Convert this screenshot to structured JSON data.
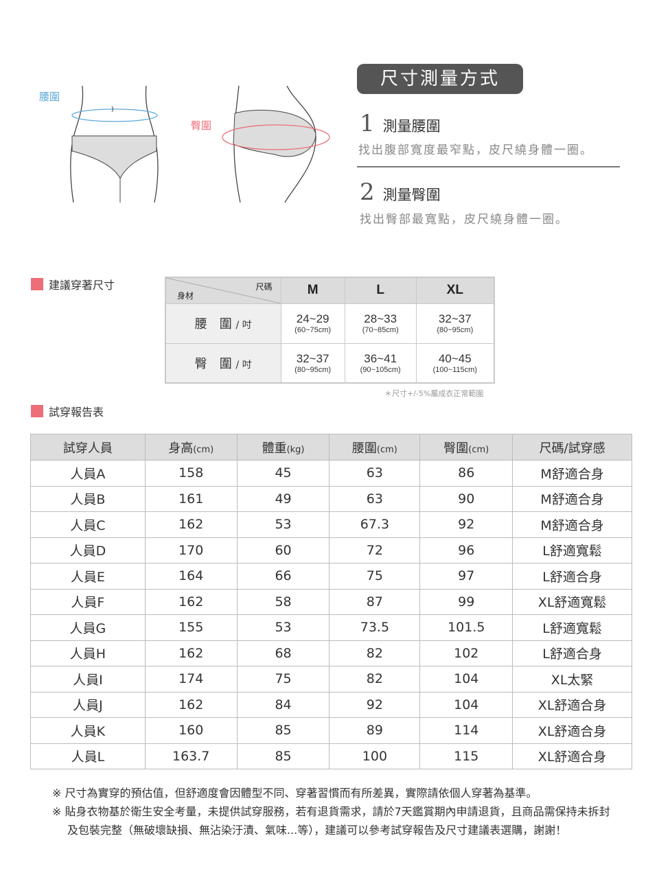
{
  "illustrations": {
    "waist_label": "腰圍",
    "hip_label": "臀圍",
    "waist_color": "#5ba7d8",
    "hip_color": "#ec6e78"
  },
  "measure": {
    "title": "尺寸測量方式",
    "steps": [
      {
        "num": "1",
        "title": "測量腰圍",
        "desc": "找出腹部寬度最窄點，皮尺繞身體一圈。"
      },
      {
        "num": "2",
        "title": "測量臀圍",
        "desc": "找出臀部最寬點，皮尺繞身體一圈。"
      }
    ]
  },
  "size_section": {
    "title": "建議穿著尺寸",
    "corner_top": "尺碼",
    "corner_bottom": "身材",
    "sizes": [
      "M",
      "L",
      "XL"
    ],
    "rows": [
      {
        "label": "腰　圍",
        "unit": "/ 吋",
        "values": [
          {
            "in": "24~29",
            "cm": "(60~75cm)"
          },
          {
            "in": "28~33",
            "cm": "(70~85cm)"
          },
          {
            "in": "32~37",
            "cm": "(80~95cm)"
          }
        ]
      },
      {
        "label": "臀　圍",
        "unit": "/ 吋",
        "values": [
          {
            "in": "32~37",
            "cm": "(80~95cm)"
          },
          {
            "in": "36~41",
            "cm": "(90~105cm)"
          },
          {
            "in": "40~45",
            "cm": "(100~115cm)"
          }
        ]
      }
    ],
    "note": "＊尺寸+/-5%屬成衣正常範圍"
  },
  "trial_section": {
    "title": "試穿報告表",
    "headers": [
      {
        "t": "試穿人員",
        "u": ""
      },
      {
        "t": "身高",
        "u": "(cm)"
      },
      {
        "t": "體重",
        "u": "(kg)"
      },
      {
        "t": "腰圍",
        "u": "(cm)"
      },
      {
        "t": "臀圍",
        "u": "(cm)"
      },
      {
        "t": "尺碼/試穿感",
        "u": ""
      }
    ],
    "rows": [
      [
        "人員A",
        "158",
        "45",
        "63",
        "86",
        "M舒適合身"
      ],
      [
        "人員B",
        "161",
        "49",
        "63",
        "90",
        "M舒適合身"
      ],
      [
        "人員C",
        "162",
        "53",
        "67.3",
        "92",
        "M舒適合身"
      ],
      [
        "人員D",
        "170",
        "60",
        "72",
        "96",
        "L舒適寬鬆"
      ],
      [
        "人員E",
        "164",
        "66",
        "75",
        "97",
        "L舒適合身"
      ],
      [
        "人員F",
        "162",
        "58",
        "87",
        "99",
        "XL舒適寬鬆"
      ],
      [
        "人員G",
        "155",
        "53",
        "73.5",
        "101.5",
        "L舒適寬鬆"
      ],
      [
        "人員H",
        "162",
        "68",
        "82",
        "102",
        "L舒適合身"
      ],
      [
        "人員I",
        "174",
        "75",
        "82",
        "104",
        "XL太緊"
      ],
      [
        "人員J",
        "162",
        "84",
        "92",
        "104",
        "XL舒適合身"
      ],
      [
        "人員K",
        "160",
        "85",
        "89",
        "114",
        "XL舒適合身"
      ],
      [
        "人員L",
        "163.7",
        "85",
        "100",
        "115",
        "XL舒適合身"
      ]
    ]
  },
  "notes": [
    "※ 尺寸為實穿的預估值，但舒適度會因體型不同、穿著習慣而有所差異，實際請依個人穿著為基準。",
    "※ 貼身衣物基於衛生安全考量，未提供試穿服務，若有退貨需求，請於7天鑑賞期內申請退貨，且商品需保持未拆封及包裝完整（無破壞缺損、無沾染汙漬、氣味...等），建議可以參考試穿報告及尺寸建議表選購，謝謝！"
  ]
}
